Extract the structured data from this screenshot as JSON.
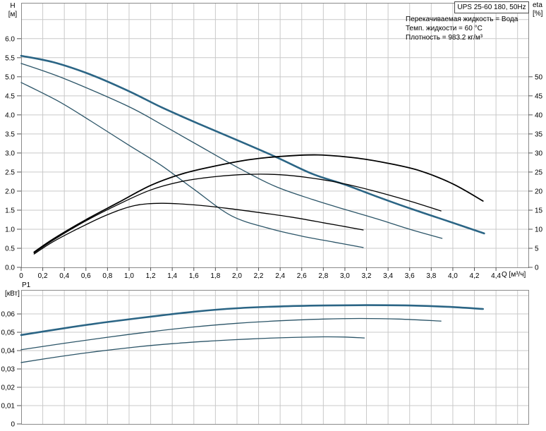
{
  "header": {
    "title": "UPS 25-60 180, 50Hz",
    "info_lines": [
      "Перекачиваемая жидкость = Вода",
      "Темп. жидкости = 60 °C",
      "Плотность = 983.2 кг/м³"
    ]
  },
  "axes": {
    "h_label": "H",
    "h_unit": "[м]",
    "eta_label": "eta",
    "eta_unit": "[%]",
    "p_label": "P1",
    "p_unit": "[кВт]",
    "q_label": "Q [м³/ч]"
  },
  "colors": {
    "curve_bold": "#2b6585",
    "curve_thin": "#2c5568",
    "curve_black": "#000000",
    "grid": "#c9c9c9",
    "frame": "#8a8a8a",
    "tick": "#555555",
    "text": "#000000"
  },
  "chart_data": [
    {
      "type": "line",
      "title": "UPS 25-60 180, 50Hz",
      "xlabel": "Q [м³/ч]",
      "ylabel_left": "H [м]",
      "ylabel_right": "eta [%]",
      "xlim": [
        0,
        4.7
      ],
      "ylim_left": [
        0,
        6.94
      ],
      "ylim_right": [
        0,
        69.4
      ],
      "grid": true,
      "x_grid": [
        0.2,
        0.4,
        0.6,
        0.8,
        1.0,
        1.2,
        1.4,
        1.6,
        1.8,
        2.0,
        2.2,
        2.4,
        2.6,
        2.8,
        3.0,
        3.2,
        3.4,
        3.6,
        3.8,
        4.0,
        4.2,
        4.4,
        4.6
      ],
      "y_grid": [
        0.5,
        1.0,
        1.5,
        2.0,
        2.5,
        3.0,
        3.5,
        4.0,
        4.5,
        5.0,
        5.5,
        6.0,
        6.5
      ],
      "x_ticks": {
        "values": [
          0,
          0.2,
          0.4,
          0.6,
          0.8,
          1.0,
          1.2,
          1.4,
          1.6,
          1.8,
          2.0,
          2.2,
          2.4,
          2.6,
          2.8,
          3.0,
          3.2,
          3.4,
          3.6,
          3.8,
          4.0,
          4.2,
          4.4
        ],
        "labels": [
          "0",
          "0,2",
          "0,4",
          "0,6",
          "0,8",
          "1,0",
          "1,2",
          "1,4",
          "1,6",
          "1,8",
          "2,0",
          "2,2",
          "2,4",
          "2,6",
          "2,8",
          "3,0",
          "3,2",
          "3,4",
          "3,6",
          "3,8",
          "4,0",
          "4,2",
          "4,4"
        ]
      },
      "y_left_ticks": {
        "values": [
          6.0,
          5.5,
          5.0,
          4.5,
          4.0,
          3.5,
          3.0,
          2.5,
          2.0,
          1.5,
          1.0,
          0.5,
          0.0
        ],
        "labels": [
          "6.0",
          "5.5",
          "5.0",
          "4.5",
          "4.0",
          "3.5",
          "3.0",
          "2.5",
          "2.0",
          "1.5",
          "1.0",
          "0.5",
          "0.0"
        ]
      },
      "y_right_ticks": {
        "values": [
          50,
          45,
          40,
          35,
          30,
          25,
          20,
          15,
          10,
          5,
          0
        ],
        "labels": [
          "50",
          "45",
          "40",
          "35",
          "30",
          "25",
          "20",
          "15",
          "10",
          "5",
          "0"
        ]
      },
      "series": [
        {
          "name": "head-curve-speed-3",
          "axis": "left",
          "style": "bold",
          "width": 2.6,
          "points": [
            [
              0,
              5.55
            ],
            [
              0.3,
              5.38
            ],
            [
              0.65,
              5.05
            ],
            [
              1.0,
              4.62
            ],
            [
              1.3,
              4.2
            ],
            [
              1.65,
              3.76
            ],
            [
              1.95,
              3.4
            ],
            [
              2.35,
              2.91
            ],
            [
              2.7,
              2.45
            ],
            [
              3.0,
              2.17
            ],
            [
              3.35,
              1.8
            ],
            [
              3.65,
              1.5
            ],
            [
              4.0,
              1.17
            ],
            [
              4.29,
              0.89
            ]
          ]
        },
        {
          "name": "head-curve-speed-2",
          "axis": "left",
          "style": "thin",
          "width": 1.3,
          "points": [
            [
              0,
              5.35
            ],
            [
              0.4,
              4.95
            ],
            [
              0.98,
              4.24
            ],
            [
              1.3,
              3.75
            ],
            [
              1.63,
              3.22
            ],
            [
              2.0,
              2.63
            ],
            [
              2.35,
              2.13
            ],
            [
              2.7,
              1.78
            ],
            [
              3.0,
              1.52
            ],
            [
              3.3,
              1.27
            ],
            [
              3.6,
              1.0
            ],
            [
              3.9,
              0.76
            ]
          ]
        },
        {
          "name": "head-curve-speed-1",
          "axis": "left",
          "style": "thin",
          "width": 1.3,
          "points": [
            [
              0,
              4.85
            ],
            [
              0.35,
              4.35
            ],
            [
              0.65,
              3.83
            ],
            [
              1.0,
              3.2
            ],
            [
              1.3,
              2.67
            ],
            [
              1.6,
              2.05
            ],
            [
              1.95,
              1.35
            ],
            [
              2.3,
              1.02
            ],
            [
              2.6,
              0.82
            ],
            [
              2.9,
              0.66
            ],
            [
              3.17,
              0.52
            ]
          ]
        },
        {
          "name": "efficiency-curve-speed-3",
          "axis": "right",
          "style": "black",
          "width": 1.8,
          "points": [
            [
              0.12,
              4
            ],
            [
              0.3,
              7.5
            ],
            [
              0.6,
              12.5
            ],
            [
              0.9,
              17
            ],
            [
              1.2,
              21.5
            ],
            [
              1.5,
              24.6
            ],
            [
              1.8,
              26.6
            ],
            [
              2.1,
              28.2
            ],
            [
              2.4,
              29.1
            ],
            [
              2.75,
              29.5
            ],
            [
              3.1,
              28.7
            ],
            [
              3.4,
              27.3
            ],
            [
              3.7,
              25.3
            ],
            [
              4.0,
              21.9
            ],
            [
              4.28,
              17.4
            ]
          ]
        },
        {
          "name": "efficiency-curve-speed-2",
          "axis": "right",
          "style": "black",
          "width": 1.3,
          "points": [
            [
              0.12,
              3.8
            ],
            [
              0.3,
              7.2
            ],
            [
              0.6,
              12.2
            ],
            [
              0.9,
              16.5
            ],
            [
              1.2,
              20.3
            ],
            [
              1.5,
              22.6
            ],
            [
              1.8,
              23.8
            ],
            [
              2.1,
              24.4
            ],
            [
              2.4,
              24.3
            ],
            [
              2.7,
              23.4
            ],
            [
              3.0,
              21.9
            ],
            [
              3.3,
              19.8
            ],
            [
              3.6,
              17.4
            ],
            [
              3.89,
              14.8
            ]
          ]
        },
        {
          "name": "efficiency-curve-speed-1",
          "axis": "right",
          "style": "black",
          "width": 1.3,
          "points": [
            [
              0.12,
              3.5
            ],
            [
              0.3,
              6.8
            ],
            [
              0.55,
              10.5
            ],
            [
              0.8,
              13.8
            ],
            [
              1.05,
              16.2
            ],
            [
              1.3,
              16.8
            ],
            [
              1.6,
              16.4
            ],
            [
              1.9,
              15.5
            ],
            [
              2.2,
              14.4
            ],
            [
              2.5,
              13.2
            ],
            [
              2.8,
              11.7
            ],
            [
              3.0,
              10.7
            ],
            [
              3.17,
              9.8
            ]
          ]
        }
      ]
    },
    {
      "type": "line",
      "title": "",
      "xlabel": "",
      "ylabel": "P1 [кВт]",
      "xlim": [
        0,
        4.7
      ],
      "ylim": [
        0,
        0.0731
      ],
      "grid": true,
      "x_grid": [
        0.2,
        0.4,
        0.6,
        0.8,
        1.0,
        1.2,
        1.4,
        1.6,
        1.8,
        2.0,
        2.2,
        2.4,
        2.6,
        2.8,
        3.0,
        3.2,
        3.4,
        3.6,
        3.8,
        4.0,
        4.2,
        4.4,
        4.6
      ],
      "y_grid": [
        0.01,
        0.02,
        0.03,
        0.04,
        0.05,
        0.06,
        0.07
      ],
      "y_left_ticks": {
        "values": [
          0.06,
          0.05,
          0.04,
          0.03,
          0.02,
          0.01,
          0
        ],
        "labels": [
          "0,06",
          "0,05",
          "0,04",
          "0,03",
          "0,02",
          "0,01",
          "0"
        ]
      },
      "series": [
        {
          "name": "power-curve-speed-3",
          "axis": "y",
          "style": "bold",
          "width": 2.6,
          "points": [
            [
              0,
              0.0485
            ],
            [
              0.4,
              0.0522
            ],
            [
              0.8,
              0.0556
            ],
            [
              1.2,
              0.0585
            ],
            [
              1.6,
              0.0612
            ],
            [
              2.0,
              0.0631
            ],
            [
              2.4,
              0.0641
            ],
            [
              2.8,
              0.0646
            ],
            [
              3.2,
              0.0648
            ],
            [
              3.6,
              0.0646
            ],
            [
              3.95,
              0.0639
            ],
            [
              4.28,
              0.0627
            ]
          ]
        },
        {
          "name": "power-curve-speed-2",
          "axis": "y",
          "style": "thin",
          "width": 1.3,
          "points": [
            [
              0,
              0.0405
            ],
            [
              0.4,
              0.044
            ],
            [
              0.8,
              0.0473
            ],
            [
              1.2,
              0.0503
            ],
            [
              1.6,
              0.0529
            ],
            [
              2.0,
              0.0549
            ],
            [
              2.4,
              0.0563
            ],
            [
              2.8,
              0.0572
            ],
            [
              3.15,
              0.0575
            ],
            [
              3.5,
              0.0572
            ],
            [
              3.89,
              0.0561
            ]
          ]
        },
        {
          "name": "power-curve-speed-1",
          "axis": "y",
          "style": "thin",
          "width": 1.3,
          "points": [
            [
              0,
              0.0335
            ],
            [
              0.35,
              0.0367
            ],
            [
              0.7,
              0.0395
            ],
            [
              1.05,
              0.0419
            ],
            [
              1.4,
              0.0438
            ],
            [
              1.75,
              0.0452
            ],
            [
              2.1,
              0.0463
            ],
            [
              2.45,
              0.0471
            ],
            [
              2.8,
              0.0475
            ],
            [
              3.0,
              0.0474
            ],
            [
              3.18,
              0.0469
            ]
          ]
        }
      ]
    }
  ]
}
